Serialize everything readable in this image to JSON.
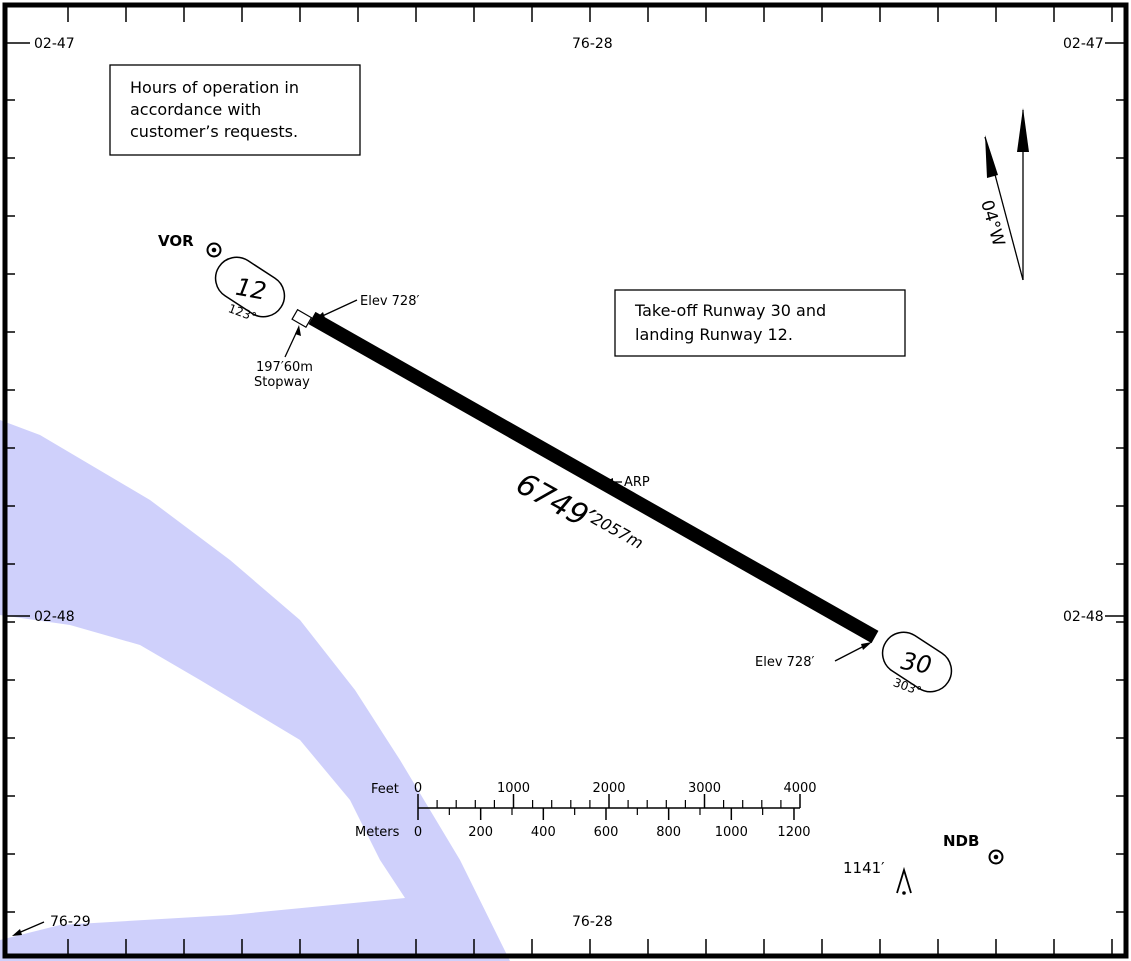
{
  "grid": {
    "lat_top": "02-47",
    "lat_bottom": "02-48",
    "lon_top": "76-28",
    "lon_bottom": "76-28",
    "lon_corner": "76-29"
  },
  "notes": {
    "hours_line1": "Hours of operation in",
    "hours_line2": "accordance with",
    "hours_line3": "customer’s requests.",
    "ops_line1": "Take-off Runway 30 and",
    "ops_line2": "landing Runway 12."
  },
  "navaids": {
    "vor": "VOR",
    "ndb": "NDB"
  },
  "runway": {
    "end_12_number": "12",
    "end_12_heading": "123°",
    "end_30_number": "30",
    "end_30_heading": "303°",
    "elev_12": "Elev 728′",
    "elev_30": "Elev 728′",
    "stopway_len": "197′60m",
    "stopway_label": "Stopway",
    "length_ft": "6749′",
    "length_m": "2057m",
    "arp": "ARP"
  },
  "magvar": "04°W",
  "obstacle": "1141′",
  "scale": {
    "feet_label": "Feet",
    "meters_label": "Meters",
    "feet_ticks": [
      "0",
      "1000",
      "2000",
      "3000",
      "4000"
    ],
    "meter_ticks": [
      "0",
      "200",
      "400",
      "600",
      "800",
      "1000",
      "1200"
    ]
  },
  "colors": {
    "water": "#cfd0fb",
    "ink": "#000000"
  }
}
